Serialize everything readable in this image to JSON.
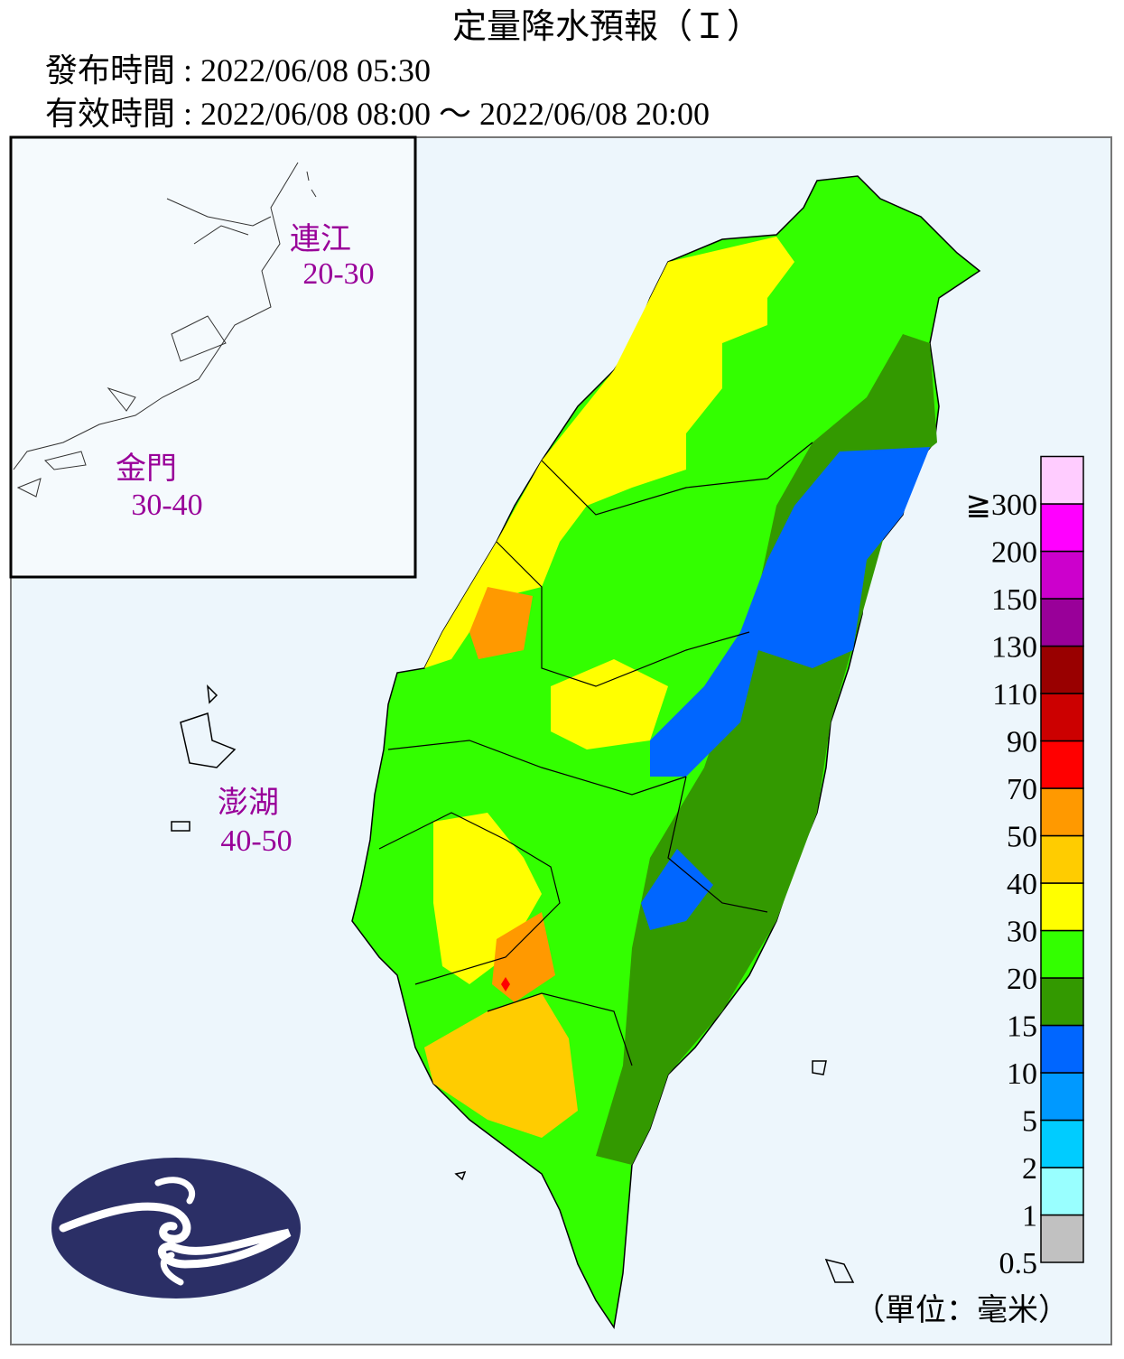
{
  "header": {
    "title": "定量降水預報（Ｉ）",
    "issue_time": "發布時間 : 2022/06/08 05:30",
    "valid_time": "有效時間 : 2022/06/08 08:00 ～ 2022/06/08 20:00"
  },
  "islands": [
    {
      "name": "連江",
      "range": "20-30"
    },
    {
      "name": "金門",
      "range": "30-40"
    },
    {
      "name": "澎湖",
      "range": "40-50"
    }
  ],
  "legend": {
    "labels": [
      "0.5",
      "1",
      "2",
      "5",
      "10",
      "15",
      "20",
      "30",
      "40",
      "50",
      "70",
      "90",
      "110",
      "130",
      "150",
      "200",
      "≧300"
    ],
    "colors": [
      "#c1c1c1",
      "#99ffff",
      "#00ccff",
      "#0099ff",
      "#0066ff",
      "#339900",
      "#33ff00",
      "#ffff00",
      "#ffcc00",
      "#ff9900",
      "#ff0000",
      "#cc0000",
      "#990000",
      "#990099",
      "#cc00cc",
      "#ff00ff",
      "#ffccff"
    ],
    "unit": "（單位：毫米）"
  }
}
